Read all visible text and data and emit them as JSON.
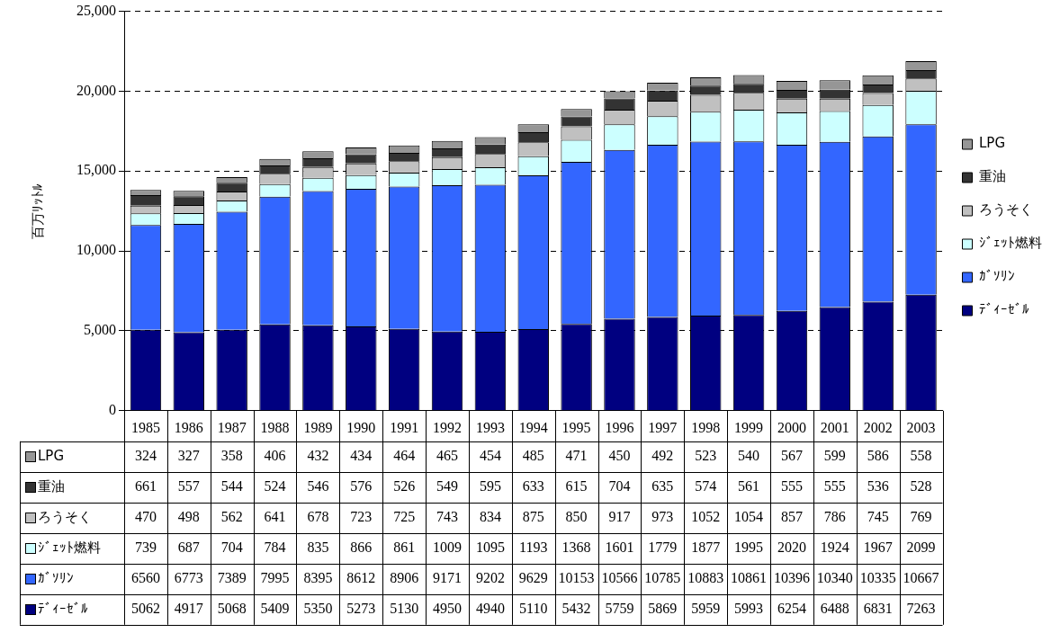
{
  "chart_data": {
    "type": "bar",
    "stacked": true,
    "ylabel": "百万ﾘｯﾄﾙ",
    "categories": [
      "1985",
      "1986",
      "1987",
      "1988",
      "1989",
      "1990",
      "1991",
      "1992",
      "1993",
      "1994",
      "1995",
      "1996",
      "1997",
      "1998",
      "1999",
      "2000",
      "2001",
      "2002",
      "2003"
    ],
    "series": [
      {
        "name": "ﾃﾞｨｰｾﾞﾙ",
        "color": "#000080",
        "values": [
          5062,
          4917,
          5068,
          5409,
          5350,
          5273,
          5130,
          4950,
          4940,
          5110,
          5432,
          5759,
          5869,
          5959,
          5993,
          6254,
          6488,
          6831,
          7263
        ]
      },
      {
        "name": "ｶﾞｿﾘﾝ",
        "color": "#3366ff",
        "values": [
          6560,
          6773,
          7389,
          7995,
          8395,
          8612,
          8906,
          9171,
          9202,
          9629,
          10153,
          10566,
          10785,
          10883,
          10861,
          10396,
          10340,
          10335,
          10667
        ]
      },
      {
        "name": "ｼﾞｪｯﾄ燃料",
        "color": "#ccffff",
        "values": [
          739,
          687,
          704,
          784,
          835,
          866,
          861,
          1009,
          1095,
          1193,
          1368,
          1601,
          1779,
          1877,
          1995,
          2020,
          1924,
          1967,
          2099
        ]
      },
      {
        "name": "ろうそく",
        "color": "#c0c0c0",
        "values": [
          470,
          498,
          562,
          641,
          678,
          723,
          725,
          743,
          834,
          875,
          850,
          917,
          973,
          1052,
          1054,
          857,
          786,
          745,
          769
        ]
      },
      {
        "name": "重油",
        "color": "#333333",
        "values": [
          661,
          557,
          544,
          524,
          546,
          576,
          526,
          549,
          595,
          633,
          615,
          704,
          635,
          574,
          561,
          555,
          555,
          536,
          528
        ]
      },
      {
        "name": "LPG",
        "color": "#969696",
        "values": [
          324,
          327,
          358,
          406,
          432,
          434,
          464,
          465,
          454,
          485,
          471,
          450,
          492,
          523,
          540,
          567,
          599,
          586,
          558
        ]
      }
    ],
    "ylim": [
      0,
      25000
    ],
    "yticks": [
      0,
      {
        "value": 5000,
        "label": "5,000"
      },
      {
        "value": 10000,
        "label": "10,000"
      },
      {
        "value": 15000,
        "label": "15,000"
      },
      {
        "value": 20000,
        "label": "20,000"
      },
      {
        "value": 25000,
        "label": "25,000"
      }
    ],
    "grid": "y",
    "legend": "right",
    "data_labels": true
  }
}
